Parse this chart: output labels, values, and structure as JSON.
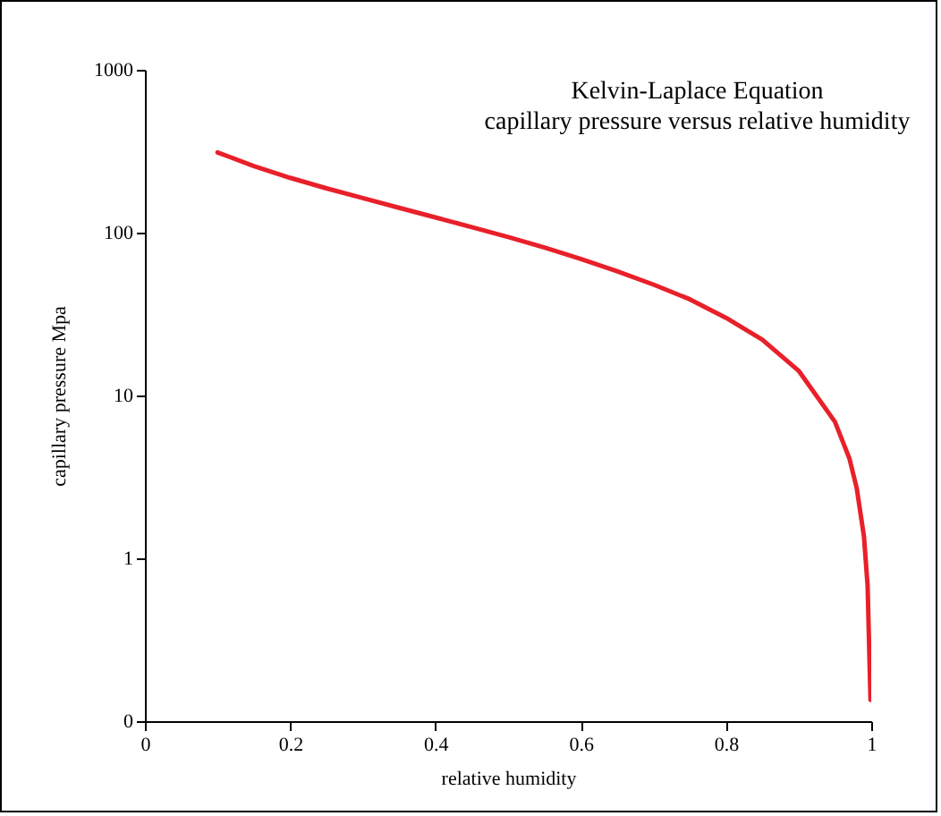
{
  "chart_data": {
    "type": "line",
    "title": "Kelvin-Laplace Equation",
    "subtitle": "capillary pressure versus relative humidity",
    "xlabel": "relative humidity",
    "ylabel": "capillary pressure Mpa",
    "x": [
      0.1,
      0.15,
      0.2,
      0.25,
      0.3,
      0.35,
      0.4,
      0.45,
      0.5,
      0.55,
      0.6,
      0.65,
      0.7,
      0.75,
      0.8,
      0.85,
      0.9,
      0.95,
      0.97,
      0.98,
      0.99,
      0.995,
      0.999
    ],
    "series": [
      {
        "color": "#e8202a",
        "values": [
          311,
          256,
          217,
          187,
          163,
          142,
          124,
          108,
          94,
          81,
          69,
          58,
          48,
          39,
          30,
          22,
          14.2,
          6.9,
          4.1,
          2.7,
          1.36,
          0.68,
          0.135
        ]
      }
    ],
    "xlim": [
      0,
      1
    ],
    "xticks": [
      0,
      0.2,
      0.4,
      0.6,
      0.8,
      1
    ],
    "ylim": [
      0.1,
      1000
    ],
    "yticks": [
      {
        "value": 0.1,
        "label": "0"
      },
      1,
      10,
      100,
      1000
    ],
    "log": "y",
    "grid": false,
    "marker": "none",
    "line_style": "solid"
  }
}
